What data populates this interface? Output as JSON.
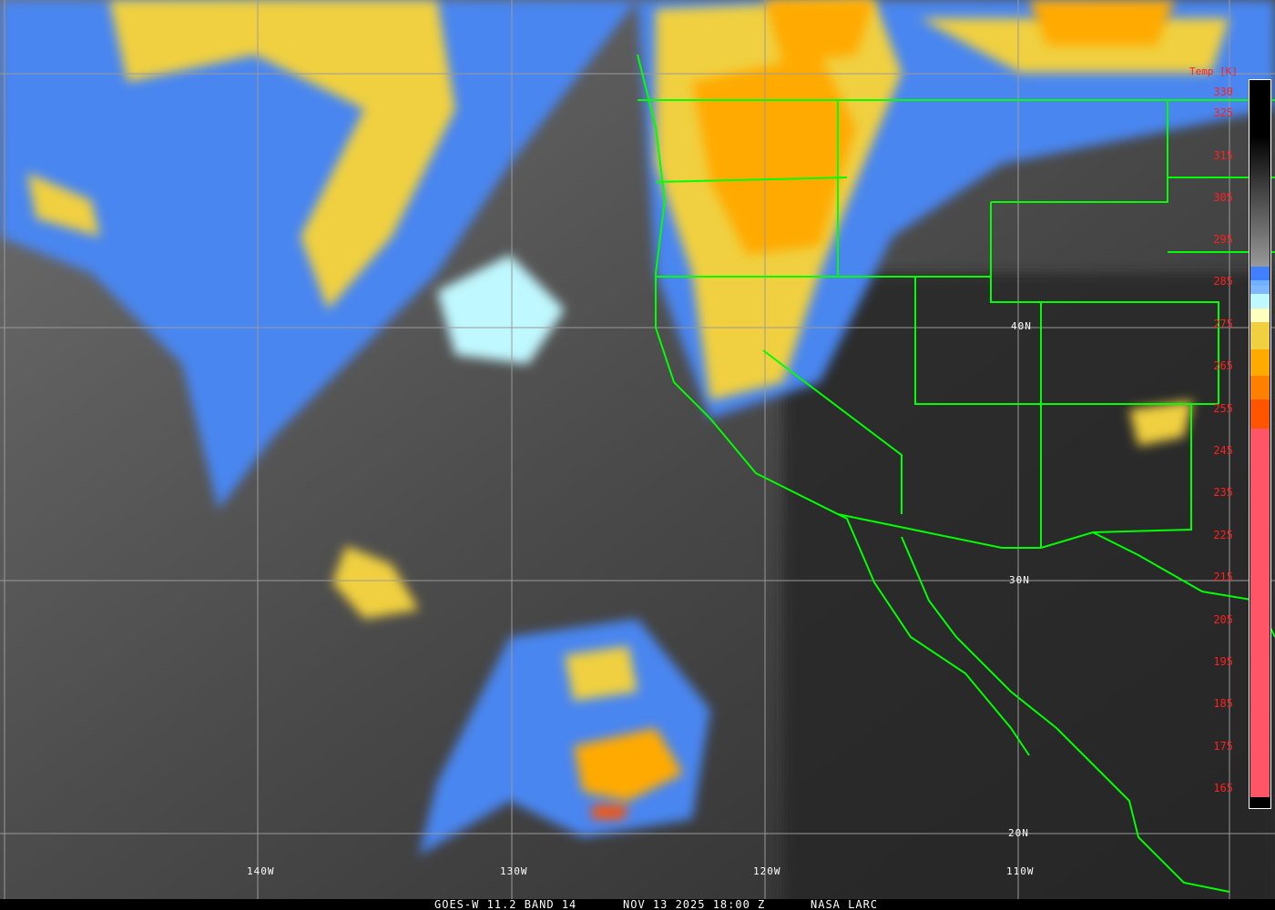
{
  "caption": {
    "satellite": "GOES-W 11.2 BAND 14",
    "datetime": "NOV 13 2025 18:00 Z",
    "credit": "NASA LARC"
  },
  "grid": {
    "longitudes": [
      "140W",
      "130W",
      "120W",
      "110W"
    ],
    "latitudes": [
      "40N",
      "30N",
      "20N"
    ]
  },
  "colorbar": {
    "title": "Temp [K]",
    "ticks": [
      "330",
      "325",
      "315",
      "305",
      "295",
      "285",
      "275",
      "265",
      "255",
      "245",
      "235",
      "225",
      "215",
      "205",
      "195",
      "185",
      "175",
      "165"
    ],
    "colors": {
      "cold_pink": "#ff5566",
      "red_orange": "#ff5500",
      "dark_orange": "#ff8000",
      "orange": "#ffaa00",
      "yellow": "#f0d040",
      "cream": "#ffffc0",
      "light_cyan": "#c0f8ff",
      "light_blue": "#70b0ff",
      "blue": "#4080ff",
      "border_green": "#00ff00",
      "label_red": "#ff2020"
    }
  }
}
